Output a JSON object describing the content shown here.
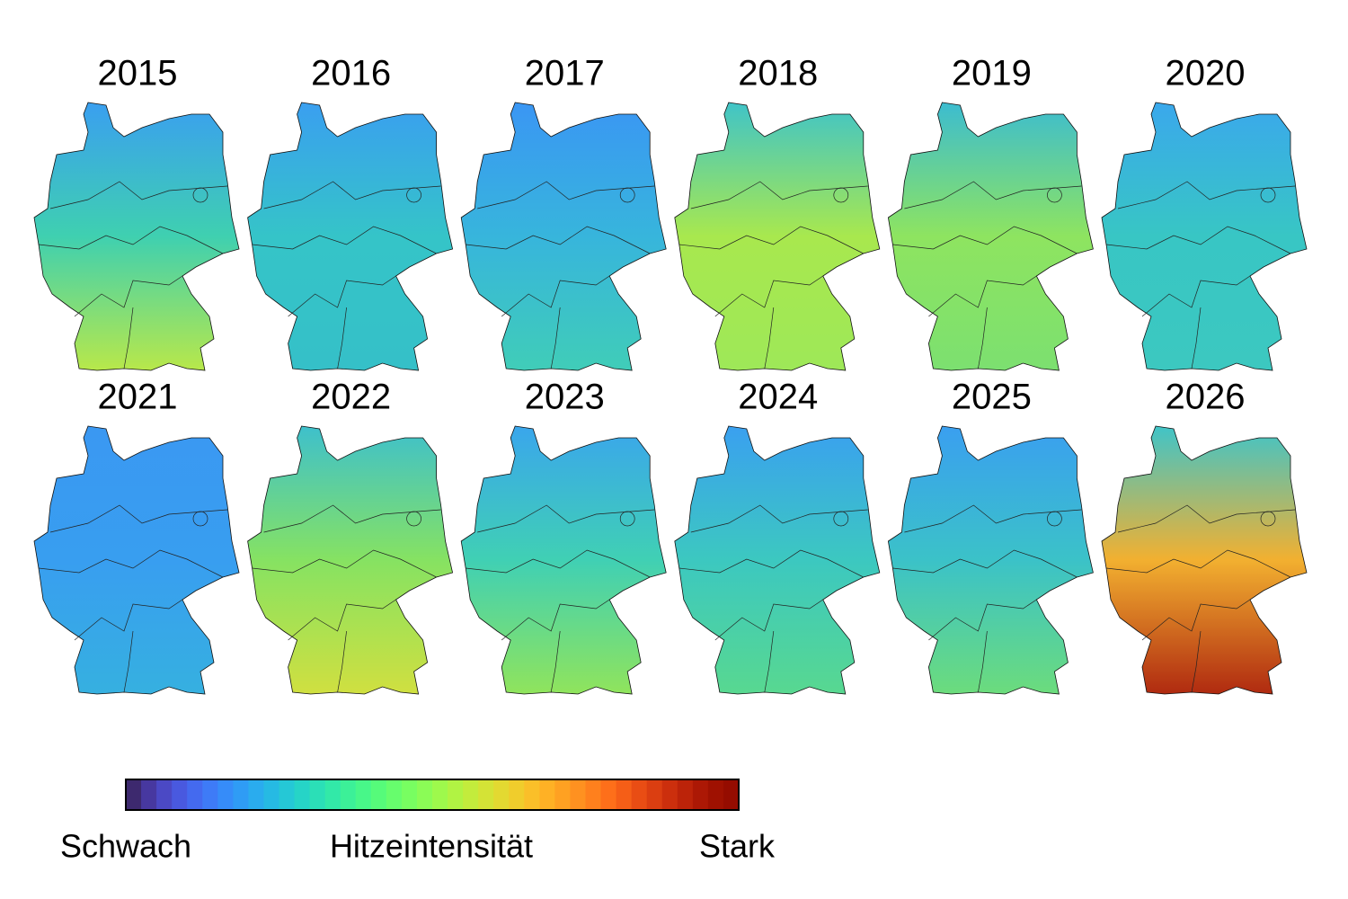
{
  "panels": [
    {
      "title": "2015",
      "colors": [
        "#3a9ff0",
        "#3fd0b0",
        "#b8e84a"
      ]
    },
    {
      "title": "2016",
      "colors": [
        "#3a9ff0",
        "#35c4c8",
        "#35c0c8"
      ]
    },
    {
      "title": "2017",
      "colors": [
        "#3a96f4",
        "#37b5dc",
        "#40cdb8"
      ]
    },
    {
      "title": "2018",
      "colors": [
        "#40c4c8",
        "#a8e84e",
        "#9ee858"
      ]
    },
    {
      "title": "2019",
      "colors": [
        "#3cbcd0",
        "#8ee460",
        "#7ce070"
      ]
    },
    {
      "title": "2020",
      "colors": [
        "#3aa8ec",
        "#38c6c4",
        "#3cc8c0"
      ]
    },
    {
      "title": "2021",
      "colors": [
        "#3a98f2",
        "#389ef0",
        "#36b0e0"
      ]
    },
    {
      "title": "2022",
      "colors": [
        "#3ec0cc",
        "#86e262",
        "#d0e040"
      ]
    },
    {
      "title": "2023",
      "colors": [
        "#3aa6ec",
        "#40d0b4",
        "#90e45c"
      ]
    },
    {
      "title": "2024",
      "colors": [
        "#3aa0f0",
        "#3cc8c0",
        "#58d890"
      ]
    },
    {
      "title": "2025",
      "colors": [
        "#3a9ff0",
        "#3bc2c8",
        "#6cdc7c"
      ]
    },
    {
      "title": "2026",
      "colors": [
        "#40c4c8",
        "#f2b030",
        "#b02a10"
      ]
    }
  ],
  "colorbar": {
    "low": "Schwach",
    "label": "Hitzeintensität",
    "high": "Stark"
  }
}
